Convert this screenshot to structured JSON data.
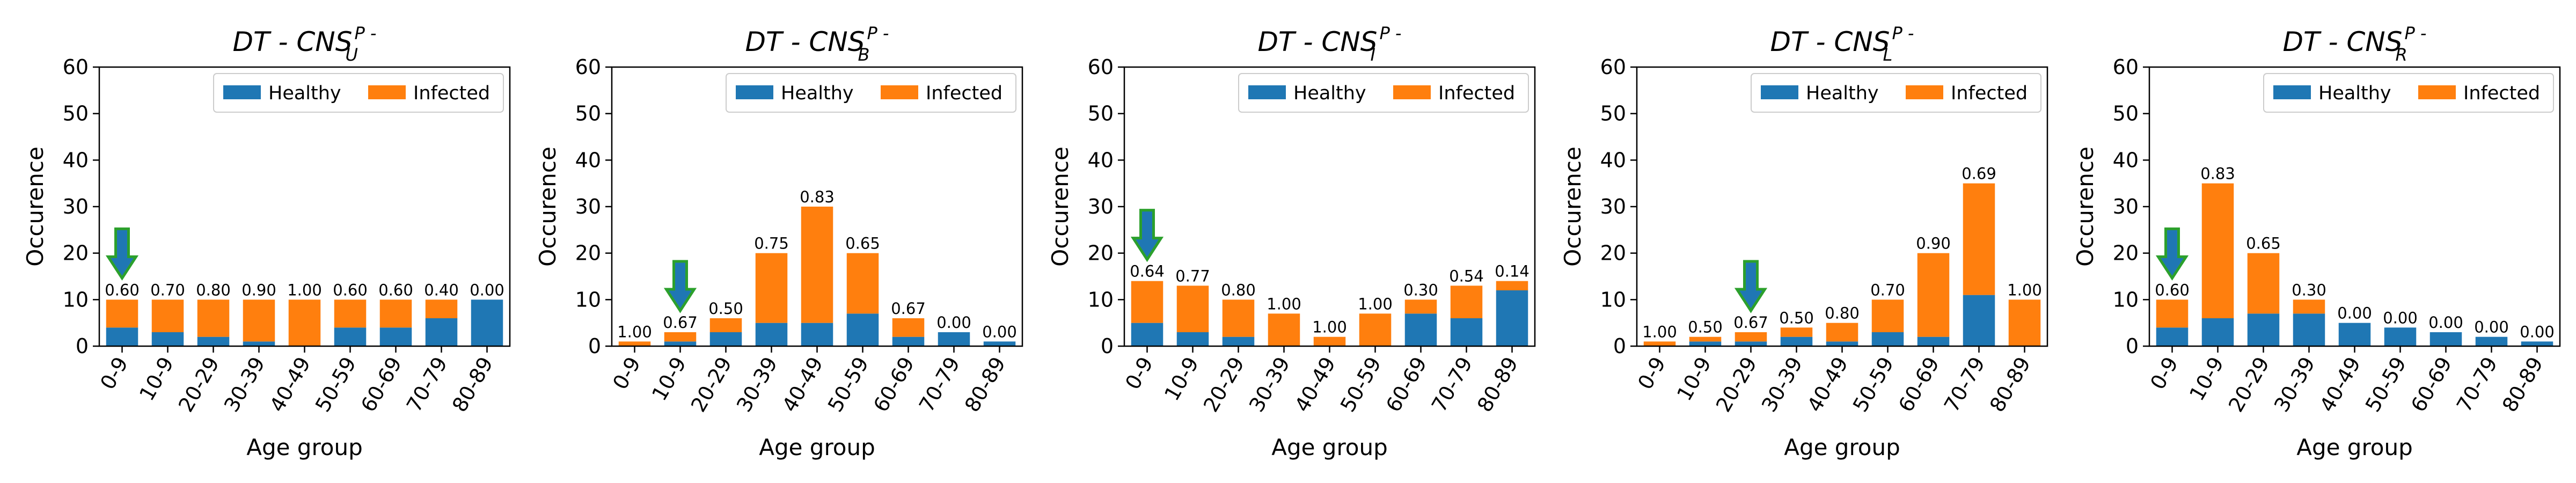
{
  "colors": {
    "healthy": "#1f77b4",
    "infected": "#ff7f0e",
    "arrow_fill": "#1f77b4",
    "arrow_stroke": "#2ca02c"
  },
  "chart_data": [
    {
      "type": "bar",
      "stacked": true,
      "title": "DT - CNS",
      "title_sup": "P -",
      "title_sub": "U",
      "categories": [
        "0-9",
        "10-9",
        "20-29",
        "30-39",
        "40-49",
        "50-59",
        "60-69",
        "70-79",
        "80-89"
      ],
      "series": [
        {
          "name": "Healthy",
          "values": [
            4,
            3,
            2,
            1,
            0,
            4,
            4,
            6,
            10
          ]
        },
        {
          "name": "Infected",
          "values": [
            6,
            7,
            8,
            9,
            10,
            6,
            6,
            4,
            0
          ]
        }
      ],
      "labels": [
        "0.60",
        "0.70",
        "0.80",
        "0.90",
        "1.00",
        "0.60",
        "0.60",
        "0.40",
        "0.00"
      ],
      "arrow_index": 0,
      "xlabel": "Age group",
      "ylabel": "Occurence",
      "ylim": [
        0,
        60
      ],
      "yticks": [
        "0",
        "10",
        "20",
        "30",
        "40",
        "50",
        "60"
      ],
      "legend": [
        "Healthy",
        "Infected"
      ],
      "legend_position": "upper right"
    },
    {
      "type": "bar",
      "stacked": true,
      "title": "DT - CNS",
      "title_sup": "P -",
      "title_sub": "B",
      "categories": [
        "0-9",
        "10-9",
        "20-29",
        "30-39",
        "40-49",
        "50-59",
        "60-69",
        "70-79",
        "80-89"
      ],
      "series": [
        {
          "name": "Healthy",
          "values": [
            0,
            1,
            3,
            5,
            5,
            7,
            2,
            3,
            1
          ]
        },
        {
          "name": "Infected",
          "values": [
            1,
            2,
            3,
            15,
            25,
            13,
            4,
            0,
            0
          ]
        }
      ],
      "labels": [
        "1.00",
        "0.67",
        "0.50",
        "0.75",
        "0.83",
        "0.65",
        "0.67",
        "0.00",
        "0.00"
      ],
      "arrow_index": 1,
      "xlabel": "Age group",
      "ylabel": "Occurence",
      "ylim": [
        0,
        60
      ],
      "yticks": [
        "0",
        "10",
        "20",
        "30",
        "40",
        "50",
        "60"
      ],
      "legend": [
        "Healthy",
        "Infected"
      ],
      "legend_position": "upper right"
    },
    {
      "type": "bar",
      "stacked": true,
      "title": "DT - CNS",
      "title_sup": "P -",
      "title_sub": "I",
      "categories": [
        "0-9",
        "10-9",
        "20-29",
        "30-39",
        "40-49",
        "50-59",
        "60-69",
        "70-79",
        "80-89"
      ],
      "series": [
        {
          "name": "Healthy",
          "values": [
            5,
            3,
            2,
            0,
            0,
            0,
            7,
            6,
            12
          ]
        },
        {
          "name": "Infected",
          "values": [
            9,
            10,
            8,
            7,
            2,
            7,
            3,
            7,
            2
          ]
        }
      ],
      "labels": [
        "0.64",
        "0.77",
        "0.80",
        "1.00",
        "1.00",
        "1.00",
        "0.30",
        "0.54",
        "0.14"
      ],
      "arrow_index": 0,
      "xlabel": "Age group",
      "ylabel": "Occurence",
      "ylim": [
        0,
        60
      ],
      "yticks": [
        "0",
        "10",
        "20",
        "30",
        "40",
        "50",
        "60"
      ],
      "legend": [
        "Healthy",
        "Infected"
      ],
      "legend_position": "upper right"
    },
    {
      "type": "bar",
      "stacked": true,
      "title": "DT - CNS",
      "title_sup": "P -",
      "title_sub": "L",
      "categories": [
        "0-9",
        "10-9",
        "20-29",
        "30-39",
        "40-49",
        "50-59",
        "60-69",
        "70-79",
        "80-89"
      ],
      "series": [
        {
          "name": "Healthy",
          "values": [
            0,
            1,
            1,
            2,
            1,
            3,
            2,
            11,
            0
          ]
        },
        {
          "name": "Infected",
          "values": [
            1,
            1,
            2,
            2,
            4,
            7,
            18,
            24,
            10
          ]
        }
      ],
      "labels": [
        "1.00",
        "0.50",
        "0.67",
        "0.50",
        "0.80",
        "0.70",
        "0.90",
        "0.69",
        "1.00"
      ],
      "arrow_index": 2,
      "xlabel": "Age group",
      "ylabel": "Occurence",
      "ylim": [
        0,
        60
      ],
      "yticks": [
        "0",
        "10",
        "20",
        "30",
        "40",
        "50",
        "60"
      ],
      "legend": [
        "Healthy",
        "Infected"
      ],
      "legend_position": "upper right"
    },
    {
      "type": "bar",
      "stacked": true,
      "title": "DT - CNS",
      "title_sup": "P -",
      "title_sub": "R",
      "categories": [
        "0-9",
        "10-9",
        "20-29",
        "30-39",
        "40-49",
        "50-59",
        "60-69",
        "70-79",
        "80-89"
      ],
      "series": [
        {
          "name": "Healthy",
          "values": [
            4,
            6,
            7,
            7,
            5,
            4,
            3,
            2,
            1
          ]
        },
        {
          "name": "Infected",
          "values": [
            6,
            29,
            13,
            3,
            0,
            0,
            0,
            0,
            0
          ]
        }
      ],
      "labels": [
        "0.60",
        "0.83",
        "0.65",
        "0.30",
        "0.00",
        "0.00",
        "0.00",
        "0.00",
        "0.00"
      ],
      "arrow_index": 0,
      "xlabel": "Age group",
      "ylabel": "Occurence",
      "ylim": [
        0,
        60
      ],
      "yticks": [
        "0",
        "10",
        "20",
        "30",
        "40",
        "50",
        "60"
      ],
      "legend": [
        "Healthy",
        "Infected"
      ],
      "legend_position": "upper right"
    }
  ]
}
